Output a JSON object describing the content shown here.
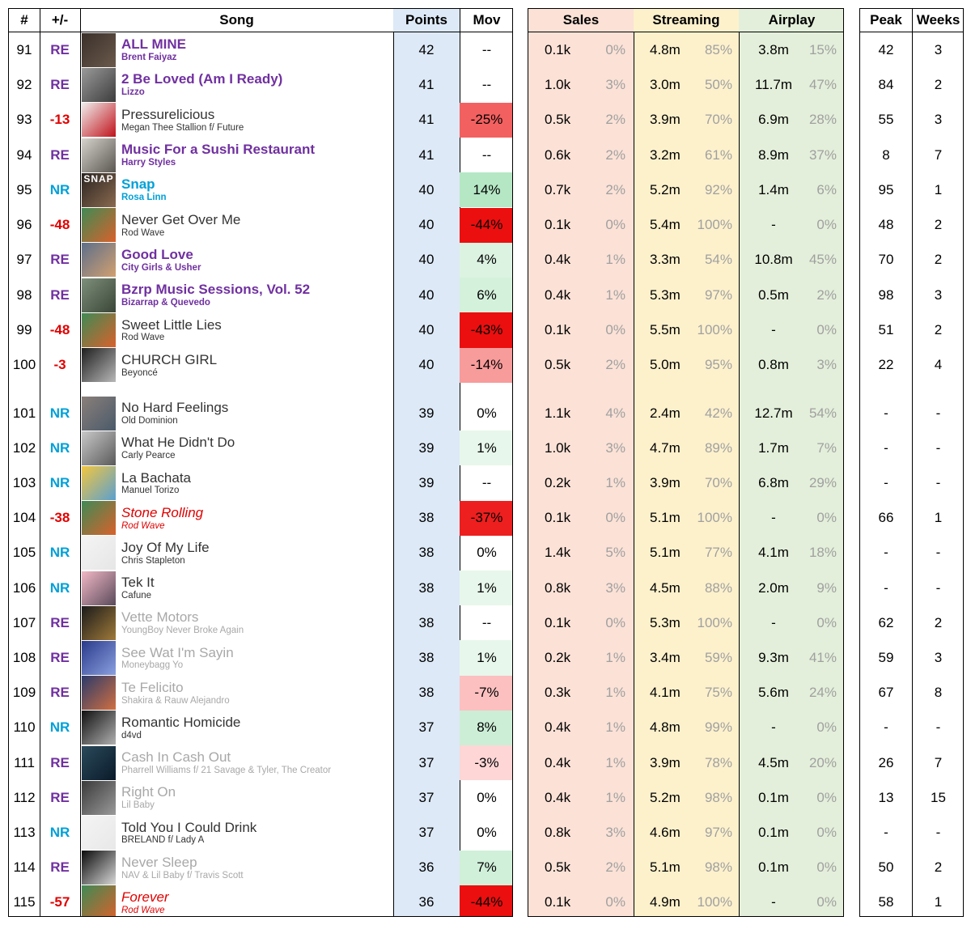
{
  "headers": {
    "rank": "#",
    "change": "+/-",
    "song": "Song",
    "points": "Points",
    "mov": "Mov",
    "sales": "Sales",
    "streaming": "Streaming",
    "airplay": "Airplay",
    "peak": "Peak",
    "weeks": "Weeks"
  },
  "colors": {
    "points_bg": "#dde9f6",
    "sales_bg": "#fbe1d6",
    "streaming_bg": "#fdf1cc",
    "airplay_bg": "#e3efda",
    "re": "#7030a0",
    "nr": "#00a0d8",
    "down": "#e00000"
  },
  "rows": [
    {
      "rank": "91",
      "change": "RE",
      "title": "ALL MINE",
      "artist": "Brent Faiyaz",
      "style": "purple",
      "points": "42",
      "mov": "--",
      "mov_value": null,
      "sales": "0.1k",
      "sales_pct": "0%",
      "streaming": "4.8m",
      "streaming_pct": "85%",
      "airplay": "3.8m",
      "airplay_pct": "15%",
      "peak": "42",
      "weeks": "3",
      "cover": [
        "#3a2f2a",
        "#6b5a4c"
      ]
    },
    {
      "rank": "92",
      "change": "RE",
      "title": "2 Be Loved (Am I Ready)",
      "artist": "Lizzo",
      "style": "purple",
      "points": "41",
      "mov": "--",
      "mov_value": null,
      "sales": "1.0k",
      "sales_pct": "3%",
      "streaming": "3.0m",
      "streaming_pct": "50%",
      "airplay": "11.7m",
      "airplay_pct": "47%",
      "peak": "84",
      "weeks": "2",
      "cover": [
        "#9a9a9a",
        "#3c3c3c"
      ]
    },
    {
      "rank": "93",
      "change": "-13",
      "title": "Pressurelicious",
      "artist": "Megan Thee Stallion f/ Future",
      "style": "normal",
      "points": "41",
      "mov": "-25%",
      "mov_value": -25,
      "sales": "0.5k",
      "sales_pct": "2%",
      "streaming": "3.9m",
      "streaming_pct": "70%",
      "airplay": "6.9m",
      "airplay_pct": "28%",
      "peak": "55",
      "weeks": "3",
      "cover": [
        "#f0eeee",
        "#c0121a"
      ]
    },
    {
      "rank": "94",
      "change": "RE",
      "title": "Music For a Sushi Restaurant",
      "artist": "Harry Styles",
      "style": "purple",
      "points": "41",
      "mov": "--",
      "mov_value": null,
      "sales": "0.6k",
      "sales_pct": "2%",
      "streaming": "3.2m",
      "streaming_pct": "61%",
      "airplay": "8.9m",
      "airplay_pct": "37%",
      "peak": "8",
      "weeks": "7",
      "cover": [
        "#d6d3cc",
        "#5a5650"
      ]
    },
    {
      "rank": "95",
      "change": "NR",
      "title": "Snap",
      "artist": "Rosa Linn",
      "style": "cyan",
      "points": "40",
      "mov": "14%",
      "mov_value": 14,
      "sales": "0.7k",
      "sales_pct": "2%",
      "streaming": "5.2m",
      "streaming_pct": "92%",
      "airplay": "1.4m",
      "airplay_pct": "6%",
      "peak": "95",
      "weeks": "1",
      "cover": [
        "#2a2420",
        "#8a6a50"
      ],
      "cover_text": "SNAP"
    },
    {
      "rank": "96",
      "change": "-48",
      "title": "Never Get Over Me",
      "artist": "Rod Wave",
      "style": "normal",
      "points": "40",
      "mov": "-44%",
      "mov_value": -44,
      "sales": "0.1k",
      "sales_pct": "0%",
      "streaming": "5.4m",
      "streaming_pct": "100%",
      "airplay": "-",
      "airplay_pct": "0%",
      "peak": "48",
      "weeks": "2",
      "cover": [
        "#3f8a55",
        "#d9612b"
      ]
    },
    {
      "rank": "97",
      "change": "RE",
      "title": "Good Love",
      "artist": "City Girls & Usher",
      "style": "purple",
      "points": "40",
      "mov": "4%",
      "mov_value": 4,
      "sales": "0.4k",
      "sales_pct": "1%",
      "streaming": "3.3m",
      "streaming_pct": "54%",
      "airplay": "10.8m",
      "airplay_pct": "45%",
      "peak": "70",
      "weeks": "2",
      "cover": [
        "#5d6f8a",
        "#d2a070"
      ]
    },
    {
      "rank": "98",
      "change": "RE",
      "title": "Bzrp Music Sessions, Vol. 52",
      "artist": "Bizarrap & Quevedo",
      "style": "purple",
      "points": "40",
      "mov": "6%",
      "mov_value": 6,
      "sales": "0.4k",
      "sales_pct": "1%",
      "streaming": "5.3m",
      "streaming_pct": "97%",
      "airplay": "0.5m",
      "airplay_pct": "2%",
      "peak": "98",
      "weeks": "3",
      "cover": [
        "#7d8f7a",
        "#3a4638"
      ]
    },
    {
      "rank": "99",
      "change": "-48",
      "title": "Sweet Little Lies",
      "artist": "Rod Wave",
      "style": "normal",
      "points": "40",
      "mov": "-43%",
      "mov_value": -43,
      "sales": "0.1k",
      "sales_pct": "0%",
      "streaming": "5.5m",
      "streaming_pct": "100%",
      "airplay": "-",
      "airplay_pct": "0%",
      "peak": "51",
      "weeks": "2",
      "cover": [
        "#3f8a55",
        "#d9612b"
      ]
    },
    {
      "rank": "100",
      "change": "-3",
      "title": "CHURCH GIRL",
      "artist": "Beyoncé",
      "style": "normal",
      "points": "40",
      "mov": "-14%",
      "mov_value": -14,
      "sales": "0.5k",
      "sales_pct": "2%",
      "streaming": "5.0m",
      "streaming_pct": "95%",
      "airplay": "0.8m",
      "airplay_pct": "3%",
      "peak": "22",
      "weeks": "4",
      "cover": [
        "#1e1e1e",
        "#b8b8b8"
      ]
    },
    {
      "rank": "101",
      "change": "NR",
      "title": "No Hard Feelings",
      "artist": "Old Dominion",
      "style": "normal",
      "points": "39",
      "mov": "0%",
      "mov_value": 0,
      "sales": "1.1k",
      "sales_pct": "4%",
      "streaming": "2.4m",
      "streaming_pct": "42%",
      "airplay": "12.7m",
      "airplay_pct": "54%",
      "peak": "-",
      "weeks": "-",
      "cover": [
        "#8a7f7a",
        "#4a5a6a"
      ]
    },
    {
      "rank": "102",
      "change": "NR",
      "title": "What He Didn't Do",
      "artist": "Carly Pearce",
      "style": "normal",
      "points": "39",
      "mov": "1%",
      "mov_value": 1,
      "sales": "1.0k",
      "sales_pct": "3%",
      "streaming": "4.7m",
      "streaming_pct": "89%",
      "airplay": "1.7m",
      "airplay_pct": "7%",
      "peak": "-",
      "weeks": "-",
      "cover": [
        "#c8c8c8",
        "#5a5a5a"
      ]
    },
    {
      "rank": "103",
      "change": "NR",
      "title": "La Bachata",
      "artist": "Manuel Torizo",
      "style": "normal",
      "points": "39",
      "mov": "--",
      "mov_value": null,
      "sales": "0.2k",
      "sales_pct": "1%",
      "streaming": "3.9m",
      "streaming_pct": "70%",
      "airplay": "6.8m",
      "airplay_pct": "29%",
      "peak": "-",
      "weeks": "-",
      "cover": [
        "#f2c640",
        "#5aa0d0"
      ]
    },
    {
      "rank": "104",
      "change": "-38",
      "title": "Stone Rolling",
      "artist": "Rod Wave",
      "style": "red",
      "points": "38",
      "mov": "-37%",
      "mov_value": -37,
      "sales": "0.1k",
      "sales_pct": "0%",
      "streaming": "5.1m",
      "streaming_pct": "100%",
      "airplay": "-",
      "airplay_pct": "0%",
      "peak": "66",
      "weeks": "1",
      "cover": [
        "#3f8a55",
        "#d9612b"
      ]
    },
    {
      "rank": "105",
      "change": "NR",
      "title": "Joy Of My Life",
      "artist": "Chris Stapleton",
      "style": "normal",
      "points": "38",
      "mov": "0%",
      "mov_value": 0,
      "sales": "1.4k",
      "sales_pct": "5%",
      "streaming": "5.1m",
      "streaming_pct": "77%",
      "airplay": "4.1m",
      "airplay_pct": "18%",
      "peak": "-",
      "weeks": "-",
      "cover": [
        "#f4f4f4",
        "#e6e6e6"
      ]
    },
    {
      "rank": "106",
      "change": "NR",
      "title": "Tek It",
      "artist": "Cafune",
      "style": "normal",
      "points": "38",
      "mov": "1%",
      "mov_value": 1,
      "sales": "0.8k",
      "sales_pct": "3%",
      "streaming": "4.5m",
      "streaming_pct": "88%",
      "airplay": "2.0m",
      "airplay_pct": "9%",
      "peak": "-",
      "weeks": "-",
      "cover": [
        "#f2b8c6",
        "#5a4a5a"
      ]
    },
    {
      "rank": "107",
      "change": "RE",
      "title": "Vette Motors",
      "artist": "YoungBoy Never Broke Again",
      "style": "gray",
      "points": "38",
      "mov": "--",
      "mov_value": null,
      "sales": "0.1k",
      "sales_pct": "0%",
      "streaming": "5.3m",
      "streaming_pct": "100%",
      "airplay": "-",
      "airplay_pct": "0%",
      "peak": "62",
      "weeks": "2",
      "cover": [
        "#1a1a1a",
        "#a07a3a"
      ]
    },
    {
      "rank": "108",
      "change": "RE",
      "title": "See Wat I'm Sayin",
      "artist": "Moneybagg Yo",
      "style": "gray",
      "points": "38",
      "mov": "1%",
      "mov_value": 1,
      "sales": "0.2k",
      "sales_pct": "1%",
      "streaming": "3.4m",
      "streaming_pct": "59%",
      "airplay": "9.3m",
      "airplay_pct": "41%",
      "peak": "59",
      "weeks": "3",
      "cover": [
        "#2a3a8a",
        "#8aa0e0"
      ]
    },
    {
      "rank": "109",
      "change": "RE",
      "title": "Te Felicito",
      "artist": "Shakira & Rauw Alejandro",
      "style": "gray",
      "points": "38",
      "mov": "-7%",
      "mov_value": -7,
      "sales": "0.3k",
      "sales_pct": "1%",
      "streaming": "4.1m",
      "streaming_pct": "75%",
      "airplay": "5.6m",
      "airplay_pct": "24%",
      "peak": "67",
      "weeks": "8",
      "cover": [
        "#2a3a6a",
        "#d07040"
      ]
    },
    {
      "rank": "110",
      "change": "NR",
      "title": "Romantic Homicide",
      "artist": "d4vd",
      "style": "normal",
      "points": "37",
      "mov": "8%",
      "mov_value": 8,
      "sales": "0.4k",
      "sales_pct": "1%",
      "streaming": "4.8m",
      "streaming_pct": "99%",
      "airplay": "-",
      "airplay_pct": "0%",
      "peak": "-",
      "weeks": "-",
      "cover": [
        "#101010",
        "#b0b0b0"
      ]
    },
    {
      "rank": "111",
      "change": "RE",
      "title": "Cash In Cash Out",
      "artist": "Pharrell Williams f/ 21 Savage & Tyler, The Creator",
      "style": "gray",
      "points": "37",
      "mov": "-3%",
      "mov_value": -3,
      "sales": "0.4k",
      "sales_pct": "1%",
      "streaming": "3.9m",
      "streaming_pct": "78%",
      "airplay": "4.5m",
      "airplay_pct": "20%",
      "peak": "26",
      "weeks": "7",
      "cover": [
        "#2a4a5a",
        "#0a1a2a"
      ]
    },
    {
      "rank": "112",
      "change": "RE",
      "title": "Right On",
      "artist": "Lil Baby",
      "style": "gray",
      "points": "37",
      "mov": "0%",
      "mov_value": 0,
      "sales": "0.4k",
      "sales_pct": "1%",
      "streaming": "5.2m",
      "streaming_pct": "98%",
      "airplay": "0.1m",
      "airplay_pct": "0%",
      "peak": "13",
      "weeks": "15",
      "cover": [
        "#3a3a3a",
        "#9a9a9a"
      ]
    },
    {
      "rank": "113",
      "change": "NR",
      "title": "Told You I Could Drink",
      "artist": "BRELAND f/ Lady A",
      "style": "normal",
      "points": "37",
      "mov": "0%",
      "mov_value": 0,
      "sales": "0.8k",
      "sales_pct": "3%",
      "streaming": "4.6m",
      "streaming_pct": "97%",
      "airplay": "0.1m",
      "airplay_pct": "0%",
      "peak": "-",
      "weeks": "-",
      "cover": [
        "#f4f4f4",
        "#e8e8e8"
      ]
    },
    {
      "rank": "114",
      "change": "RE",
      "title": "Never Sleep",
      "artist": "NAV & Lil Baby f/ Travis Scott",
      "style": "gray",
      "points": "36",
      "mov": "7%",
      "mov_value": 7,
      "sales": "0.5k",
      "sales_pct": "2%",
      "streaming": "5.1m",
      "streaming_pct": "98%",
      "airplay": "0.1m",
      "airplay_pct": "0%",
      "peak": "50",
      "weeks": "2",
      "cover": [
        "#0a0a0a",
        "#d8d8d8"
      ]
    },
    {
      "rank": "115",
      "change": "-57",
      "title": "Forever",
      "artist": "Rod Wave",
      "style": "red",
      "points": "36",
      "mov": "-44%",
      "mov_value": -44,
      "sales": "0.1k",
      "sales_pct": "0%",
      "streaming": "4.9m",
      "streaming_pct": "100%",
      "airplay": "-",
      "airplay_pct": "0%",
      "peak": "58",
      "weeks": "1",
      "cover": [
        "#3f8a55",
        "#d9612b"
      ]
    }
  ]
}
